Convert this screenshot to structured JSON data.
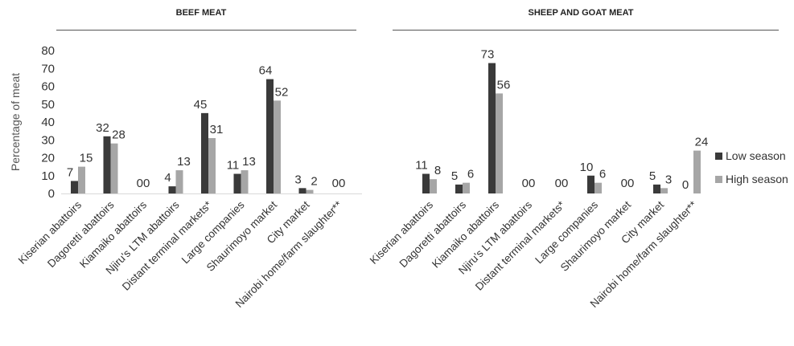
{
  "chart_data": {
    "type": "bar",
    "ylabel": "Percentage of meat",
    "ylim": [
      0,
      80
    ],
    "yticks": [
      "0",
      "10",
      "20",
      "30",
      "40",
      "50",
      "60",
      "70",
      "80"
    ],
    "legend": {
      "position": "right",
      "entries": [
        "Low season",
        "High season"
      ]
    },
    "colors": {
      "low": "#3a3a3a",
      "high": "#a6a6a6"
    },
    "panels": [
      {
        "title": "BEEF MEAT",
        "categories": [
          "Kiserian abattoirs",
          "Dagoretti abattoirs",
          "Kiamaiko abattoirs",
          "Njiru's LTM abattoirs",
          "Distant terminal markets*",
          "Large companies",
          "Shaurimoyo market",
          "City market",
          "Nairobi home/farm slaughter**"
        ],
        "series": [
          {
            "name": "Low season",
            "values": [
              7,
              32,
              0,
              4,
              45,
              11,
              64,
              3,
              0
            ]
          },
          {
            "name": "High season",
            "values": [
              15,
              28,
              0,
              13,
              31,
              13,
              52,
              2,
              0
            ]
          }
        ]
      },
      {
        "title": "SHEEP AND GOAT MEAT",
        "categories": [
          "Kiserian abattoirs",
          "Dagoretti abattoirs",
          "Kiamaiko abattoirs",
          "Njiru's LTM abattoirs",
          "Distant terminal markets*",
          "Large companies",
          "Shaurimoyo market",
          "City market",
          "Nairobi home/farm slaughter**"
        ],
        "series": [
          {
            "name": "Low season",
            "values": [
              11,
              5,
              73,
              0,
              0,
              10,
              0,
              5,
              0
            ]
          },
          {
            "name": "High season",
            "values": [
              8,
              6,
              56,
              0,
              0,
              6,
              0,
              3,
              24
            ]
          }
        ]
      }
    ]
  }
}
